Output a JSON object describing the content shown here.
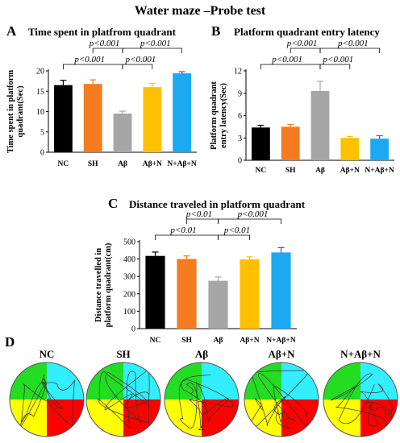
{
  "figure": {
    "title": "Water maze –Probe test",
    "panel_d_label": "D"
  },
  "chart_data": [
    {
      "type": "bar",
      "panel": "A",
      "title": "Time spent in platfrom quadrant",
      "ylabel": "Time spent in platform quadrant(Sec)",
      "categories": [
        "NC",
        "SH",
        "Aβ",
        "Aβ+N",
        "N+Aβ+N"
      ],
      "values": [
        16.5,
        16.8,
        9.5,
        16.0,
        19.4
      ],
      "errors": [
        1.2,
        1.0,
        0.6,
        0.9,
        0.4
      ],
      "colors": [
        "#000000",
        "#f47b20",
        "#a6a6a6",
        "#ffc000",
        "#1ca9f2"
      ],
      "ylim": [
        0,
        20
      ],
      "yticks": [
        "0",
        "5",
        "10",
        "15",
        "20"
      ],
      "significance": [
        {
          "from": 0,
          "to": 2,
          "label": "p<0.001",
          "level": 1
        },
        {
          "from": 1,
          "to": 2,
          "label": "p<0.001",
          "level": 2
        },
        {
          "from": 2,
          "to": 3,
          "label": "p<0.001",
          "level": 1
        },
        {
          "from": 2,
          "to": 4,
          "label": "p<0.001",
          "level": 2
        }
      ]
    },
    {
      "type": "bar",
      "panel": "B",
      "title": "Platform quadrant  entry latency",
      "ylabel": "Platform quadrant entry latency(Sec)",
      "categories": [
        "NC",
        "SH",
        "Aβ",
        "Aβ+N",
        "N+Aβ+N"
      ],
      "values": [
        4.4,
        4.5,
        9.3,
        3.0,
        2.9
      ],
      "errors": [
        0.3,
        0.3,
        1.3,
        0.2,
        0.4
      ],
      "colors": [
        "#000000",
        "#f47b20",
        "#a6a6a6",
        "#ffc000",
        "#1ca9f2"
      ],
      "ylim": [
        0,
        12
      ],
      "yticks": [
        "0",
        "3",
        "6",
        "9",
        "12"
      ],
      "significance": [
        {
          "from": 0,
          "to": 2,
          "label": "p<0.001",
          "level": 1
        },
        {
          "from": 1,
          "to": 2,
          "label": "p<0.001",
          "level": 2
        },
        {
          "from": 2,
          "to": 3,
          "label": "p<0.001",
          "level": 1
        },
        {
          "from": 2,
          "to": 4,
          "label": "p<0.001",
          "level": 2
        }
      ]
    },
    {
      "type": "bar",
      "panel": "C",
      "title": "Distance traveled  in platform quadrant",
      "ylabel": "Distance travelled  in platform quadrant(cm)",
      "categories": [
        "NC",
        "SH",
        "Aβ",
        "Aβ+N",
        "N+Aβ+N"
      ],
      "values": [
        418,
        400,
        275,
        398,
        438
      ],
      "errors": [
        22,
        18,
        22,
        15,
        28
      ],
      "colors": [
        "#000000",
        "#f47b20",
        "#a6a6a6",
        "#ffc000",
        "#1ca9f2"
      ],
      "ylim": [
        0,
        500
      ],
      "yticks": [
        "0",
        "100",
        "200",
        "300",
        "400",
        "500"
      ],
      "significance": [
        {
          "from": 0,
          "to": 2,
          "label": "p<0.01",
          "level": 1
        },
        {
          "from": 1,
          "to": 2,
          "label": "p<0.01",
          "level": 2
        },
        {
          "from": 2,
          "to": 3,
          "label": "p<0.01",
          "level": 1
        },
        {
          "from": 2,
          "to": 4,
          "label": "p<0.001",
          "level": 2
        }
      ]
    }
  ],
  "mazes": [
    {
      "label": "NC"
    },
    {
      "label": "SH"
    },
    {
      "label": "Aβ"
    },
    {
      "label": "Aβ+N"
    },
    {
      "label": "N+Aβ+N"
    }
  ],
  "maze_colors": {
    "top_left": "#22dd22",
    "top_right": "#33eeff",
    "bottom_left": "#ffff00",
    "bottom_right": "#ff0000"
  }
}
